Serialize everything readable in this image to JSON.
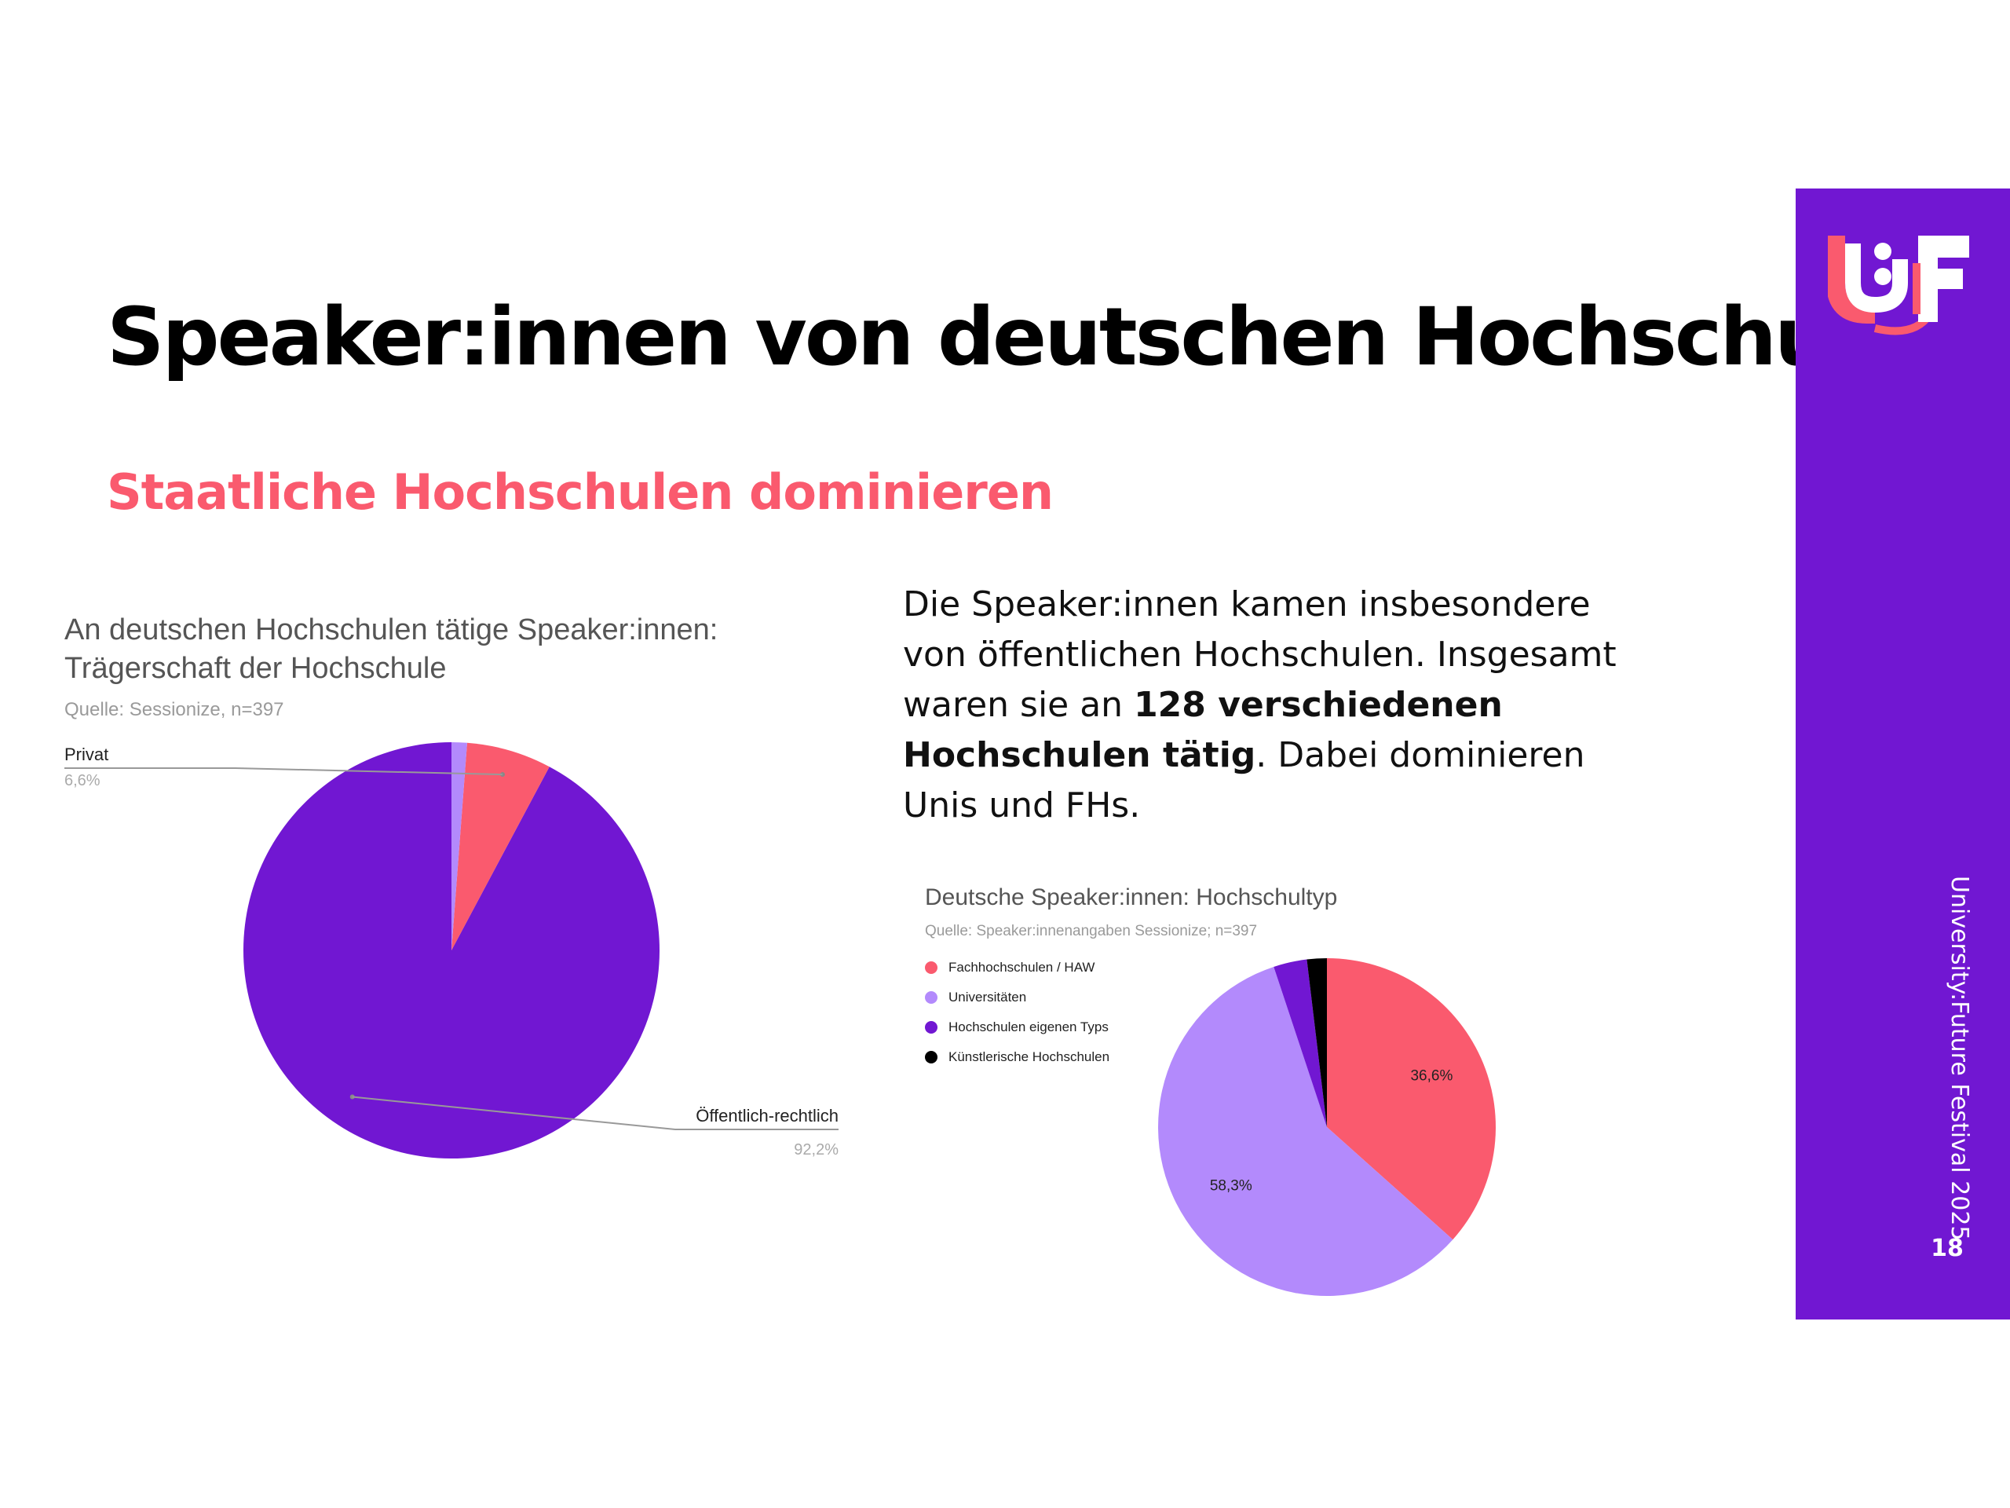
{
  "slide": {
    "title": "Speaker:innen von deutschen Hochschulen",
    "subtitle": "Staatliche Hochschulen dominieren",
    "body_part1": "Die Speaker:innen kamen insbesondere von öffentlichen Hochschulen. Insgesamt waren sie an ",
    "body_bold": "128 verschiedenen Hochschulen tätig",
    "body_part2": ". Dabei dominieren Unis und FHs.",
    "footer_text": "University:Future Festival 2025",
    "page_number": "18",
    "subtitle_color": "#fa5a6e",
    "sidebar_color": "#7117d2"
  },
  "chart_data": [
    {
      "type": "pie",
      "title": "An deutschen Hochschulen tätige Speaker:innen: Trägerschaft der Hochschule",
      "source": "Quelle: Sessionize, n=397",
      "series": [
        {
          "name": "Öffentlich-rechtlich",
          "value": 92.2,
          "label": "92,2%",
          "color": "#7117d2"
        },
        {
          "name": "Privat",
          "value": 6.6,
          "label": "6,6%",
          "color": "#fa5a6e"
        },
        {
          "name": "",
          "value": 1.2,
          "label": "",
          "color": "#b38afc"
        }
      ],
      "legend": "callout-labels"
    },
    {
      "type": "pie",
      "title": "Deutsche Speaker:innen: Hochschultyp",
      "source": "Quelle: Speaker:innenangaben Sessionize; n=397",
      "series": [
        {
          "name": "Fachhochschulen / HAW",
          "value": 36.6,
          "label": "36,6%",
          "color": "#fa5a6e"
        },
        {
          "name": "Universitäten",
          "value": 58.3,
          "label": "58,3%",
          "color": "#b38afc"
        },
        {
          "name": "Hochschulen eigenen Typs",
          "value": 3.2,
          "label": "",
          "color": "#7117d2"
        },
        {
          "name": "Künstlerische Hochschulen",
          "value": 1.9,
          "label": "",
          "color": "#000000"
        }
      ],
      "legend": "top-left"
    }
  ]
}
